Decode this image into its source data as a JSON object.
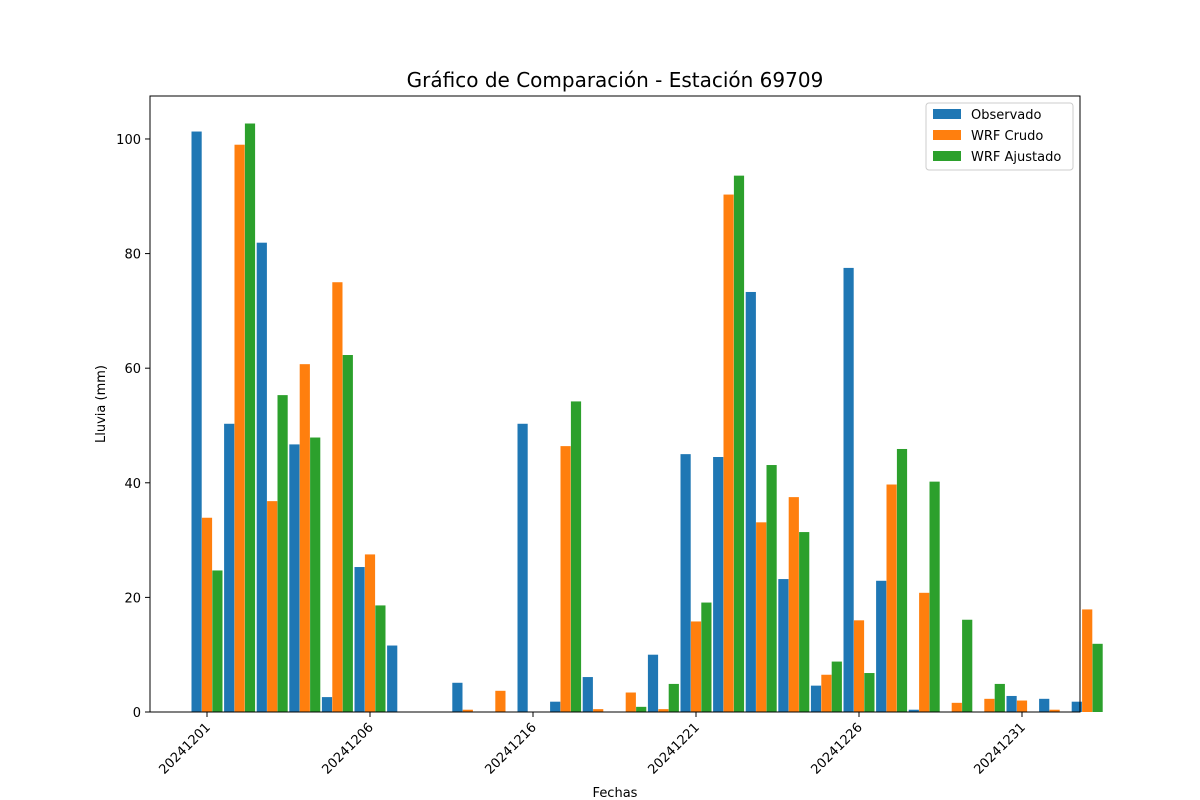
{
  "chart_data": {
    "type": "bar",
    "title": "Gráfico de Comparación - Estación 69709",
    "xlabel": "Fechas",
    "ylabel": "Lluvia (mm)",
    "ylim": [
      0,
      107.5
    ],
    "yticks": [
      0,
      20,
      40,
      60,
      80,
      100
    ],
    "xtick_labels": [
      "20241201",
      "20241206",
      "20241216",
      "20241221",
      "20241226",
      "20241231"
    ],
    "legend_position": "top-right",
    "grid": false,
    "series": [
      {
        "name": "Observado",
        "color": "#1f77b4",
        "values": [
          101.3,
          50.3,
          81.9,
          46.7,
          2.6,
          25.3,
          11.6,
          0,
          5.1,
          0,
          50.3,
          1.8,
          6.1,
          0,
          10.0,
          45.0,
          44.5,
          73.3,
          23.2,
          4.6,
          77.5,
          22.9,
          0.4,
          0,
          0,
          2.8,
          2.3,
          1.8
        ]
      },
      {
        "name": "WRF Crudo",
        "color": "#ff7f0e",
        "values": [
          33.9,
          99.0,
          36.8,
          60.7,
          75.0,
          27.5,
          0,
          0,
          0.4,
          3.7,
          0,
          46.4,
          0.5,
          3.4,
          0.5,
          15.8,
          90.3,
          33.1,
          37.5,
          6.5,
          16.0,
          39.7,
          20.8,
          1.6,
          2.3,
          2.0,
          0.4,
          17.9
        ]
      },
      {
        "name": "WRF Ajustado",
        "color": "#2ca02c",
        "values": [
          24.7,
          102.7,
          55.3,
          47.9,
          62.3,
          18.6,
          0,
          0,
          0,
          0,
          0,
          54.2,
          0,
          0.9,
          4.9,
          19.1,
          93.6,
          43.1,
          31.4,
          8.8,
          6.8,
          45.9,
          40.2,
          16.1,
          4.9,
          0,
          0,
          11.9
        ]
      }
    ]
  }
}
